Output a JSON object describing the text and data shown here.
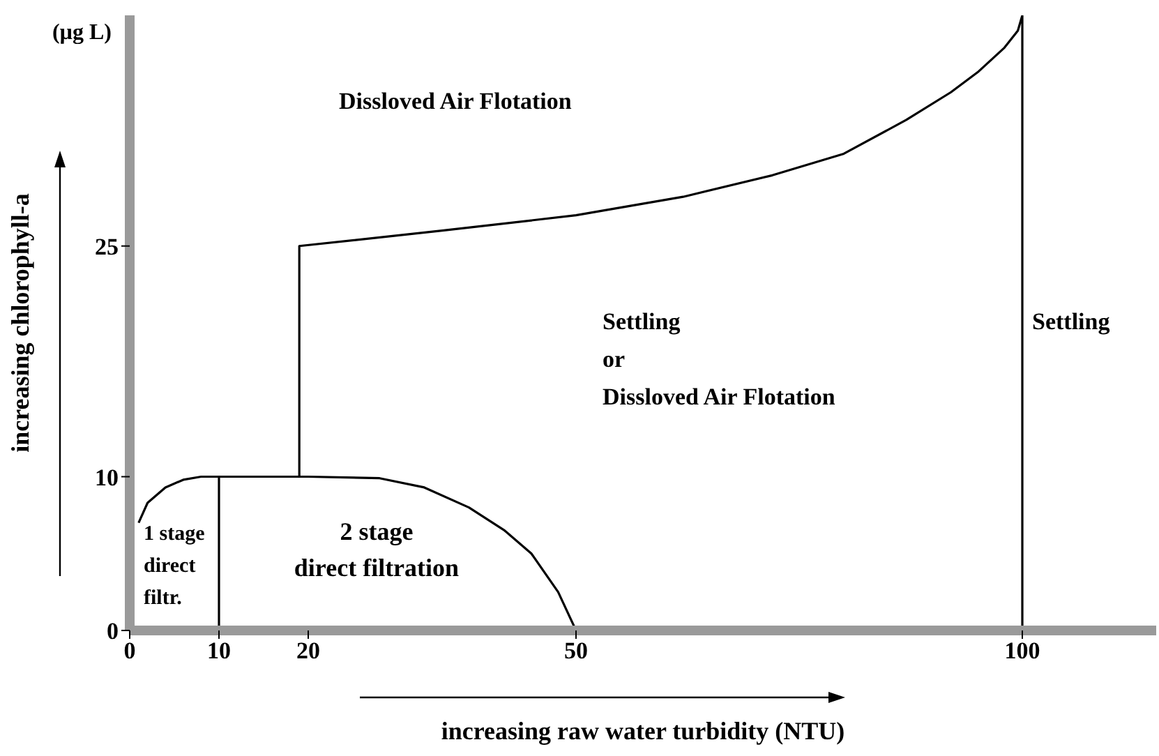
{
  "chart_data": {
    "type": "line",
    "xlabel": "increasing raw water turbidity (NTU)",
    "ylabel": "increasing chlorophyll-a",
    "xlim": [
      0,
      115
    ],
    "ylim": [
      0,
      40
    ],
    "xticks": [
      0,
      10,
      20,
      50,
      100
    ],
    "yticks": [
      0,
      10,
      25
    ],
    "marker": "none",
    "line_style": "solid",
    "series": [
      {
        "color": "#000000",
        "x": [
          1,
          2,
          4,
          6,
          8,
          10,
          20,
          28,
          33,
          38,
          42,
          45,
          48,
          50
        ],
        "values": [
          7,
          8.3,
          9.3,
          9.8,
          10,
          10,
          10,
          9.9,
          9.3,
          8,
          6.5,
          5,
          2.5,
          0
        ]
      },
      {
        "color": "#000000",
        "x": [
          10,
          10
        ],
        "values": [
          0,
          10
        ]
      },
      {
        "color": "#000000",
        "x": [
          19,
          19,
          35,
          50,
          62,
          72,
          80,
          87,
          92,
          95,
          98,
          99.5,
          100,
          100
        ],
        "values": [
          10,
          25,
          26,
          27,
          28.2,
          29.6,
          31,
          33.2,
          35,
          36.3,
          37.9,
          39,
          40,
          0
        ]
      }
    ],
    "annotations": [
      "(µg L)",
      "Dissloved Air Flotation",
      "Settling\nor\nDissloved Air Flotation",
      "Settling",
      "1 stage\ndirect\nfiltr.",
      "2 stage\ndirect filtration"
    ]
  }
}
